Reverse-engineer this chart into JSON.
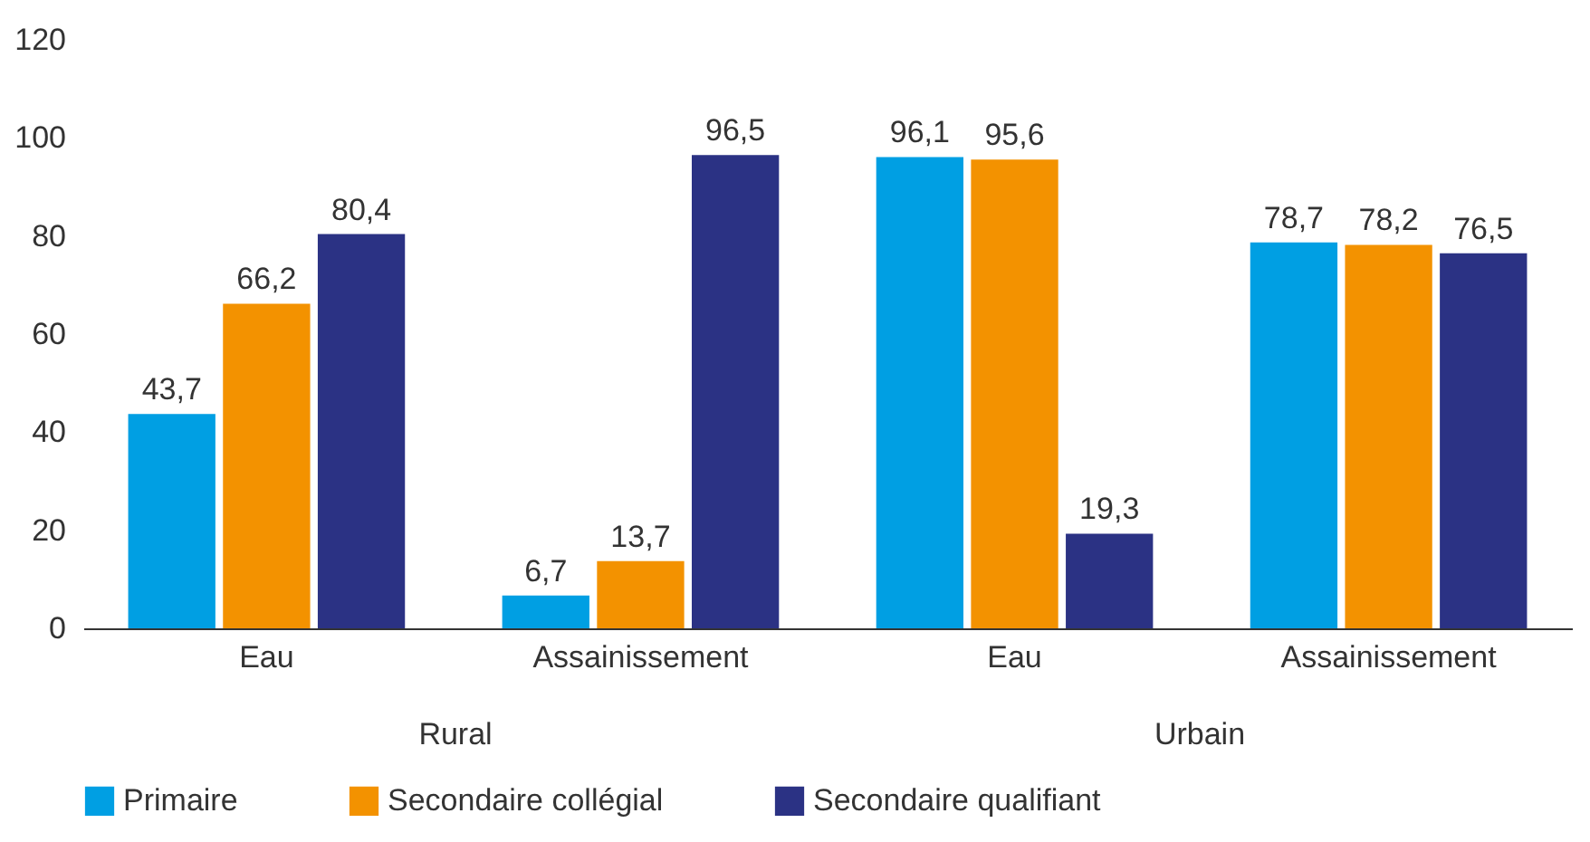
{
  "chart_data": {
    "type": "bar",
    "categories": [
      "Eau",
      "Assainissement",
      "Eau",
      "Assainissement"
    ],
    "annotations": [
      "Rural",
      "Urbain"
    ],
    "series": [
      {
        "name": "Primaire",
        "color": "#009fe3",
        "values": [
          43.7,
          6.7,
          96.1,
          78.7
        ],
        "value_labels": [
          "43,7",
          "6,7",
          "96,1",
          "78,7"
        ]
      },
      {
        "name": "Secondaire collégial",
        "color": "#f39200",
        "values": [
          66.2,
          13.7,
          95.6,
          78.2
        ],
        "value_labels": [
          "66,2",
          "13,7",
          "95,6",
          "78,2"
        ]
      },
      {
        "name": "Secondaire qualifiant",
        "color": "#2b3284",
        "values": [
          80.4,
          96.5,
          19.3,
          76.5
        ],
        "value_labels": [
          "80,4",
          "96,5",
          "19,3",
          "76,5"
        ]
      }
    ],
    "ylim": [
      0,
      120
    ],
    "yticks": [
      0,
      20,
      40,
      60,
      80,
      100,
      120
    ],
    "grid": false,
    "legend": "bottom"
  }
}
